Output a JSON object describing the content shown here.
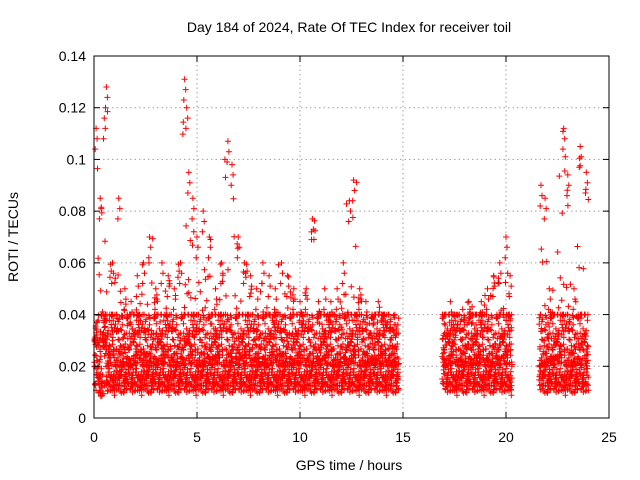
{
  "chart_data": {
    "type": "scatter",
    "title": "Day 184 of 2024, Rate Of TEC Index for receiver toil",
    "xlabel": "GPS time / hours",
    "ylabel": "ROTI / TECUs",
    "xlim": [
      0,
      25
    ],
    "ylim": [
      0,
      0.14
    ],
    "xticks": [
      0,
      5,
      10,
      15,
      20,
      25
    ],
    "xtick_labels": [
      "0",
      "5",
      "10",
      "15",
      "20",
      "25"
    ],
    "yticks": [
      0,
      0.02,
      0.04,
      0.06,
      0.08,
      0.1,
      0.12,
      0.14
    ],
    "ytick_labels": [
      "0",
      "0.02",
      "0.04",
      "0.06",
      "0.08",
      "0.1",
      "0.12",
      "0.14"
    ],
    "grid": true,
    "marker": "+",
    "marker_color": "#ff0000",
    "data_gaps_hours": [
      [
        14.8,
        16.9
      ],
      [
        20.3,
        21.6
      ]
    ],
    "series": [
      {
        "name": "ROTI",
        "x": [
          0.1,
          0.3,
          0.5,
          0.6,
          0.9,
          1.2,
          1.5,
          1.8,
          2.1,
          2.4,
          2.7,
          3.0,
          3.3,
          3.6,
          3.9,
          4.2,
          4.4,
          4.5,
          4.6,
          4.8,
          5.0,
          5.3,
          5.6,
          5.9,
          6.2,
          6.5,
          6.7,
          7.0,
          7.3,
          7.6,
          7.9,
          8.2,
          8.5,
          8.8,
          9.1,
          9.4,
          9.7,
          10.0,
          10.3,
          10.6,
          10.9,
          11.2,
          11.5,
          11.8,
          12.1,
          12.4,
          12.6,
          12.9,
          13.2,
          13.5,
          13.8,
          14.1,
          14.4,
          14.6,
          17.0,
          17.3,
          17.6,
          17.9,
          18.2,
          18.5,
          18.8,
          19.1,
          19.4,
          19.7,
          20.0,
          20.2,
          21.7,
          21.9,
          22.1,
          22.8,
          23.0,
          23.3,
          23.6,
          23.9
        ],
        "y": [
          0.112,
          0.085,
          0.116,
          0.128,
          0.06,
          0.085,
          0.05,
          0.045,
          0.055,
          0.06,
          0.07,
          0.05,
          0.06,
          0.055,
          0.05,
          0.06,
          0.131,
          0.12,
          0.095,
          0.085,
          0.07,
          0.08,
          0.07,
          0.05,
          0.06,
          0.107,
          0.098,
          0.07,
          0.06,
          0.055,
          0.05,
          0.06,
          0.055,
          0.05,
          0.06,
          0.055,
          0.05,
          0.045,
          0.05,
          0.077,
          0.045,
          0.05,
          0.045,
          0.05,
          0.06,
          0.084,
          0.092,
          0.05,
          0.045,
          0.04,
          0.045,
          0.04,
          0.035,
          0.04,
          0.04,
          0.045,
          0.04,
          0.042,
          0.045,
          0.04,
          0.045,
          0.05,
          0.055,
          0.06,
          0.07,
          0.055,
          0.09,
          0.085,
          0.05,
          0.112,
          0.094,
          0.05,
          0.105,
          0.095
        ],
        "baseline_band": [
          0.008,
          0.03
        ]
      }
    ]
  }
}
